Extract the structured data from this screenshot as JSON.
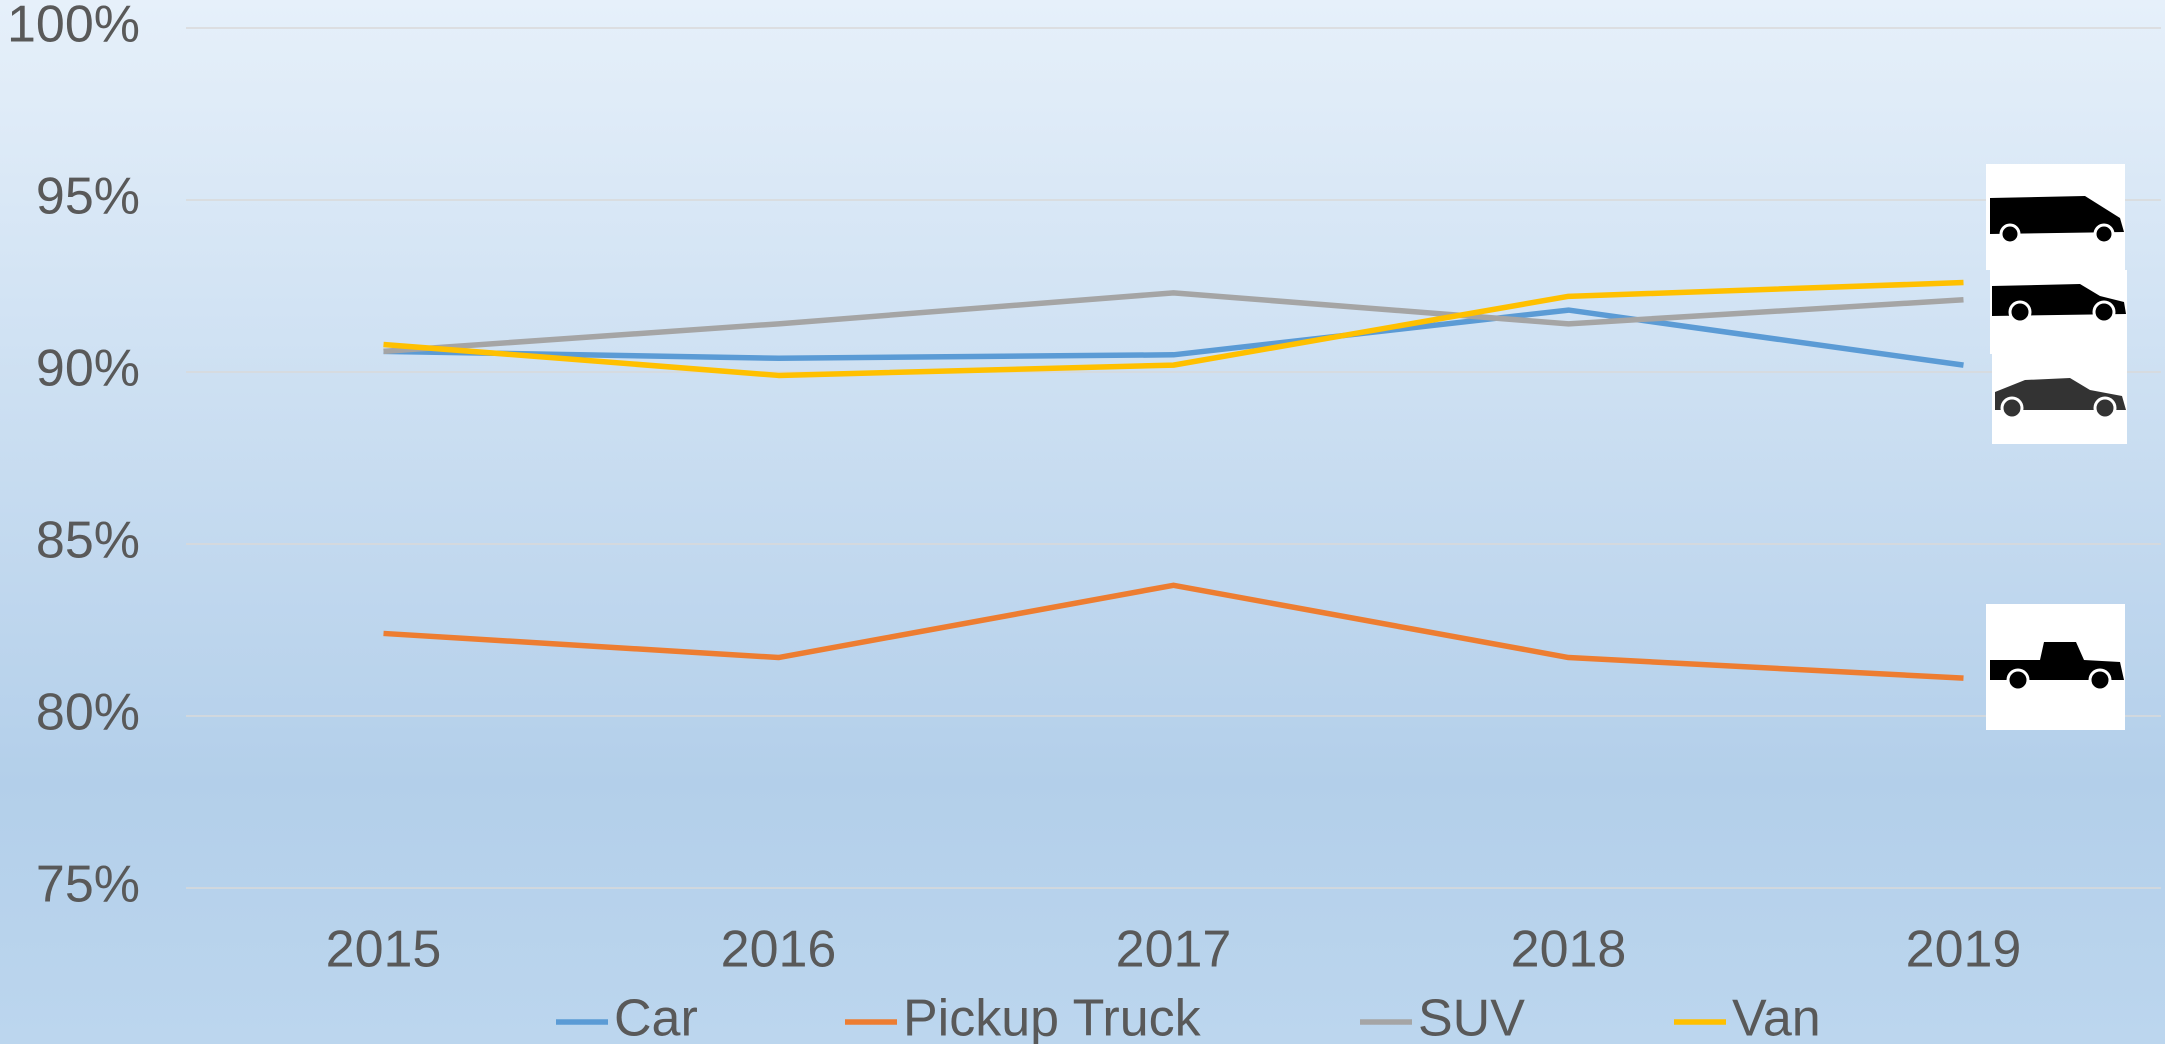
{
  "chart_data": {
    "type": "line",
    "categories": [
      "2015",
      "2016",
      "2017",
      "2018",
      "2019"
    ],
    "series": [
      {
        "name": "Car",
        "color": "#5b9bd5",
        "values": [
          90.6,
          90.4,
          90.5,
          91.8,
          90.2
        ]
      },
      {
        "name": "Pickup Truck",
        "color": "#ed7d31",
        "values": [
          82.4,
          81.7,
          83.8,
          81.7,
          81.1
        ]
      },
      {
        "name": "SUV",
        "color": "#a5a5a5",
        "values": [
          90.6,
          91.4,
          92.3,
          91.4,
          92.1
        ]
      },
      {
        "name": "Van",
        "color": "#ffc000",
        "values": [
          90.8,
          89.9,
          90.2,
          92.2,
          92.6
        ]
      }
    ],
    "ylim": [
      75,
      100
    ],
    "yticks": [
      {
        "value": 75,
        "label": "75%"
      },
      {
        "value": 80,
        "label": "80%"
      },
      {
        "value": 85,
        "label": "85%"
      },
      {
        "value": 90,
        "label": "90%"
      },
      {
        "value": 95,
        "label": "95%"
      },
      {
        "value": 100,
        "label": "100%"
      }
    ],
    "grid": true,
    "legend": "bottom"
  }
}
